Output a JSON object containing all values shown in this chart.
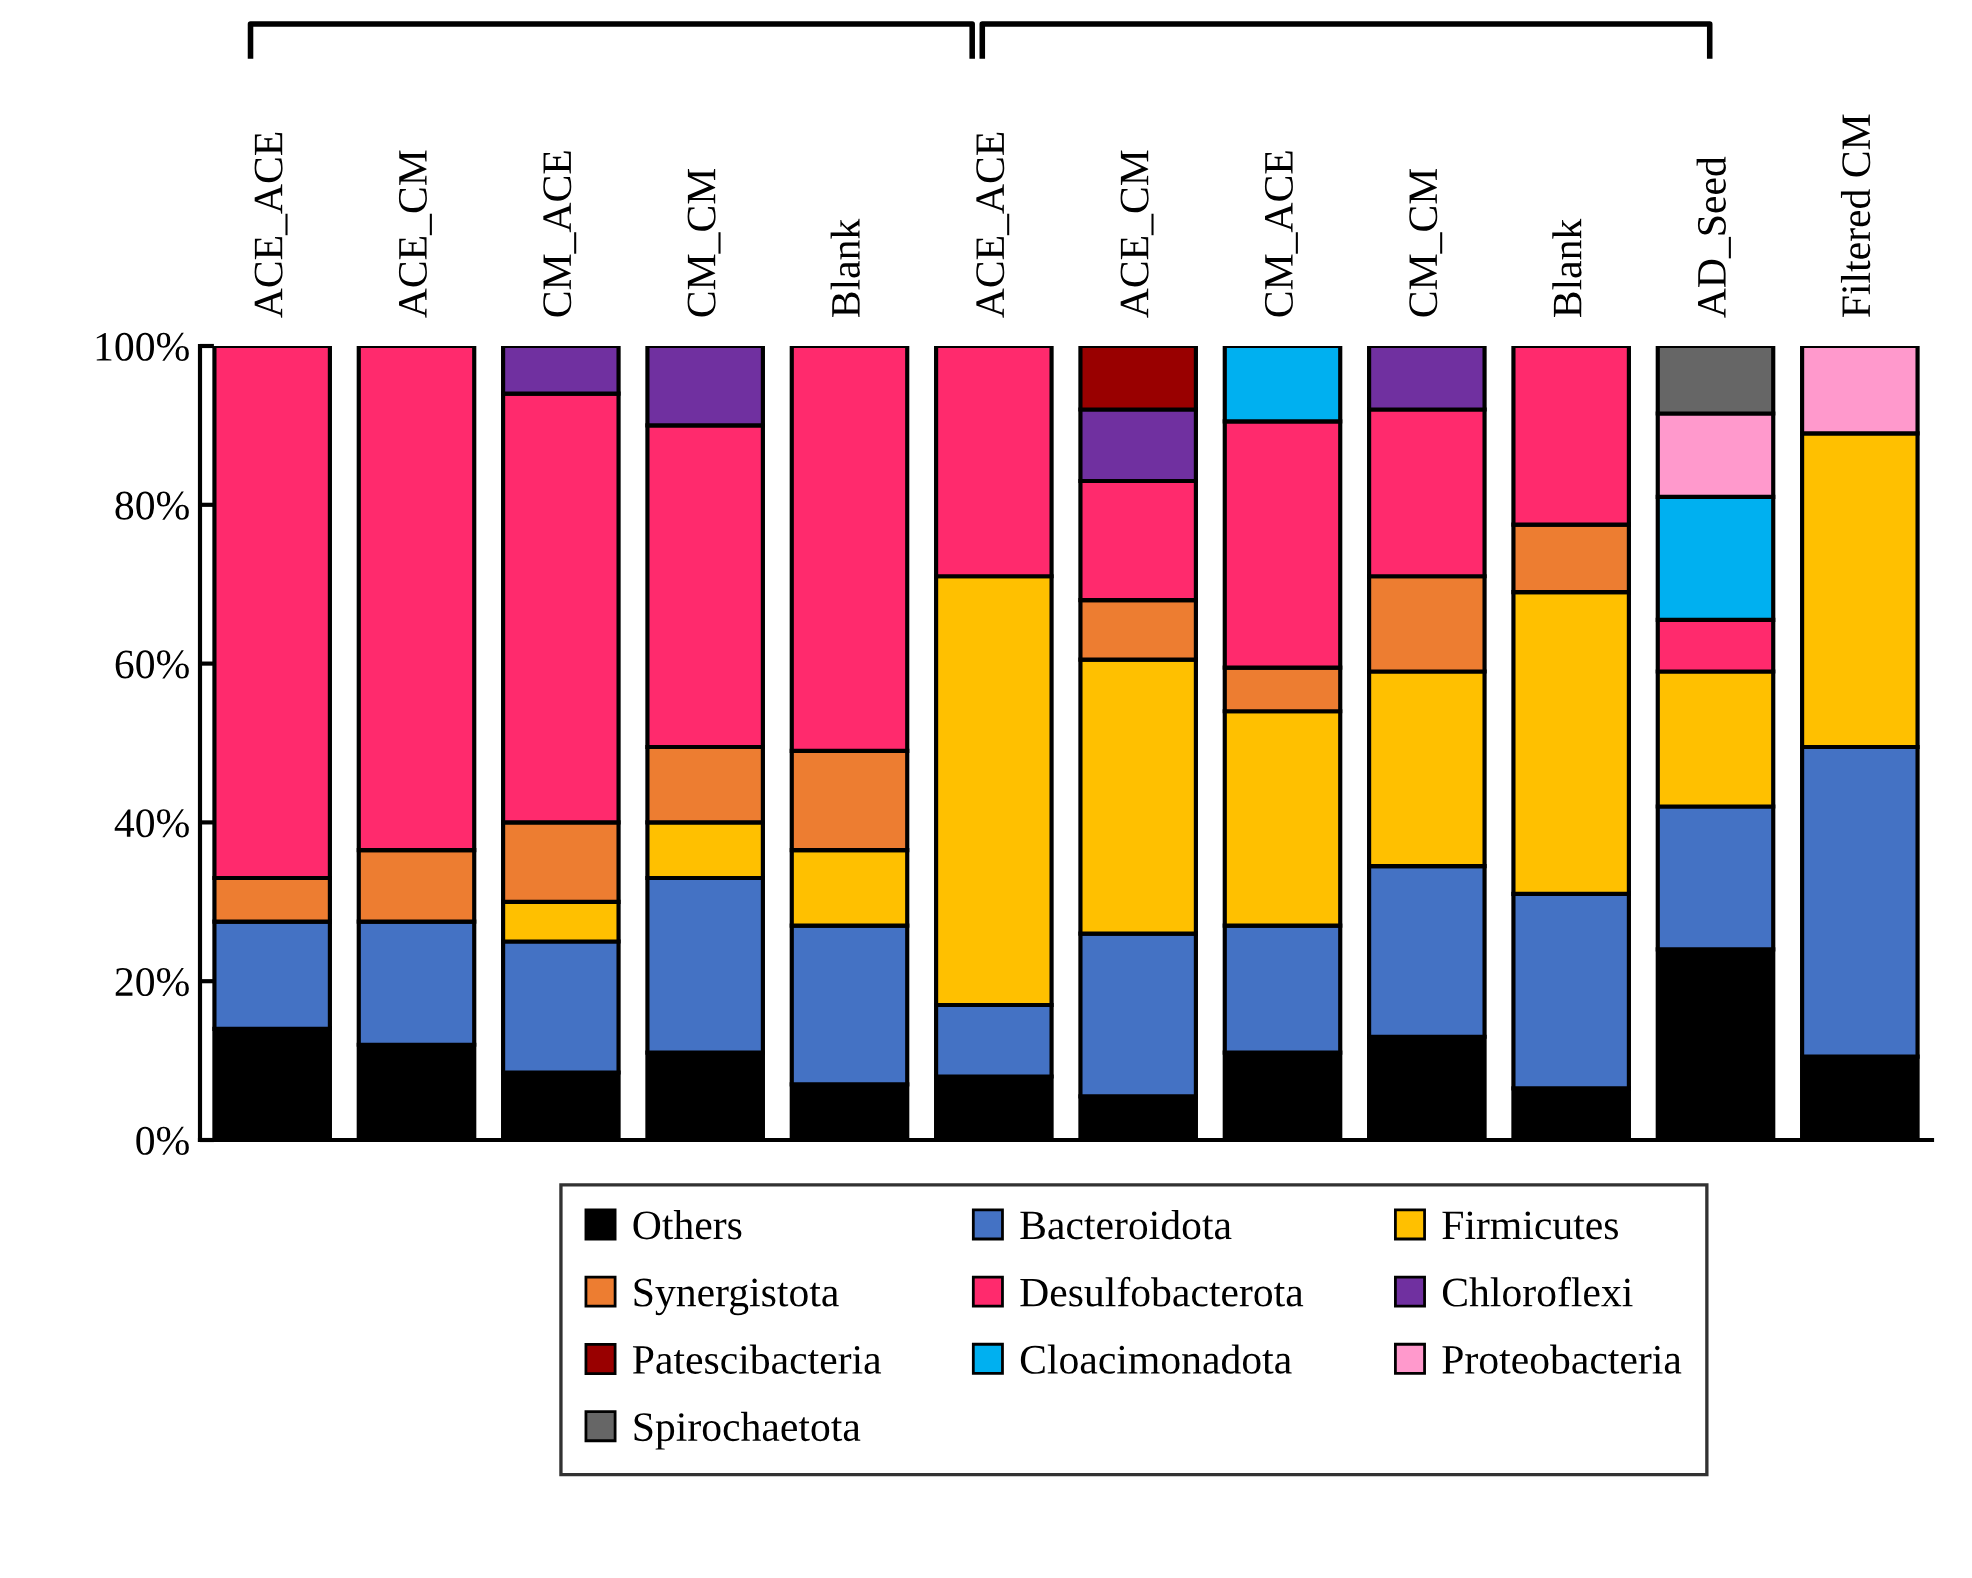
{
  "chart_data": {
    "type": "bar",
    "stacked": true,
    "categories": [
      "ACE_ACE",
      "ACE_CM",
      "CM_ACE",
      "CM_CM",
      "Blank",
      "ACE_ACE",
      "ACE_CM",
      "CM_ACE",
      "CM_CM",
      "Blank",
      "AD_Seed",
      "Filtered CM"
    ],
    "series": [
      {
        "name": "Others",
        "color": "#000000",
        "values": [
          14,
          12,
          8.5,
          11,
          7,
          8,
          5.5,
          11,
          13,
          6.5,
          24,
          10.5
        ]
      },
      {
        "name": "Bacteroidota",
        "color": "#4472c4",
        "values": [
          13.5,
          15.5,
          16.5,
          22,
          20,
          9,
          20.5,
          16,
          21.5,
          24.5,
          18,
          39
        ]
      },
      {
        "name": "Firmicutes",
        "color": "#ffc000",
        "values": [
          null,
          null,
          5,
          7,
          9.5,
          54,
          34.5,
          27,
          24.5,
          38,
          17,
          39.5
        ]
      },
      {
        "name": "Synergistota",
        "color": "#ed7d31",
        "values": [
          5.5,
          9,
          10,
          9.5,
          12.5,
          null,
          7.5,
          5.5,
          12,
          8.5,
          null,
          null
        ]
      },
      {
        "name": "Desulfobacterota",
        "color": "#ff2a6d",
        "values": [
          67,
          63.5,
          54,
          40.5,
          51,
          29,
          15,
          31,
          21,
          22.5,
          6.5,
          null
        ]
      },
      {
        "name": "Chloroflexi",
        "color": "#7030a0",
        "values": [
          null,
          null,
          6,
          10,
          null,
          null,
          9,
          null,
          8,
          null,
          null,
          null
        ]
      },
      {
        "name": "Patescibacteria",
        "color": "#990000",
        "values": [
          null,
          null,
          null,
          null,
          null,
          null,
          8,
          null,
          null,
          null,
          null,
          null
        ]
      },
      {
        "name": "Cloacimonadota",
        "color": "#00b0f0",
        "values": [
          null,
          null,
          null,
          null,
          null,
          null,
          null,
          9.5,
          null,
          null,
          15.5,
          null
        ]
      },
      {
        "name": "Proteobacteria",
        "color": "#ff99cc",
        "values": [
          null,
          null,
          null,
          null,
          null,
          null,
          null,
          null,
          null,
          null,
          10.5,
          11
        ]
      },
      {
        "name": "Spirochaetota",
        "color": "#666666",
        "values": [
          null,
          null,
          null,
          null,
          null,
          null,
          null,
          null,
          null,
          null,
          8.5,
          null
        ]
      }
    ],
    "ylim": [
      0,
      100
    ],
    "yticks": [
      {
        "value": 0,
        "label": "0%"
      },
      {
        "value": 20,
        "label": "20%"
      },
      {
        "value": 40,
        "label": "40%"
      },
      {
        "value": 60,
        "label": "60%"
      },
      {
        "value": 80,
        "label": "80%"
      },
      {
        "value": 100,
        "label": "100%"
      }
    ],
    "grid": false,
    "legend": "bottom"
  }
}
